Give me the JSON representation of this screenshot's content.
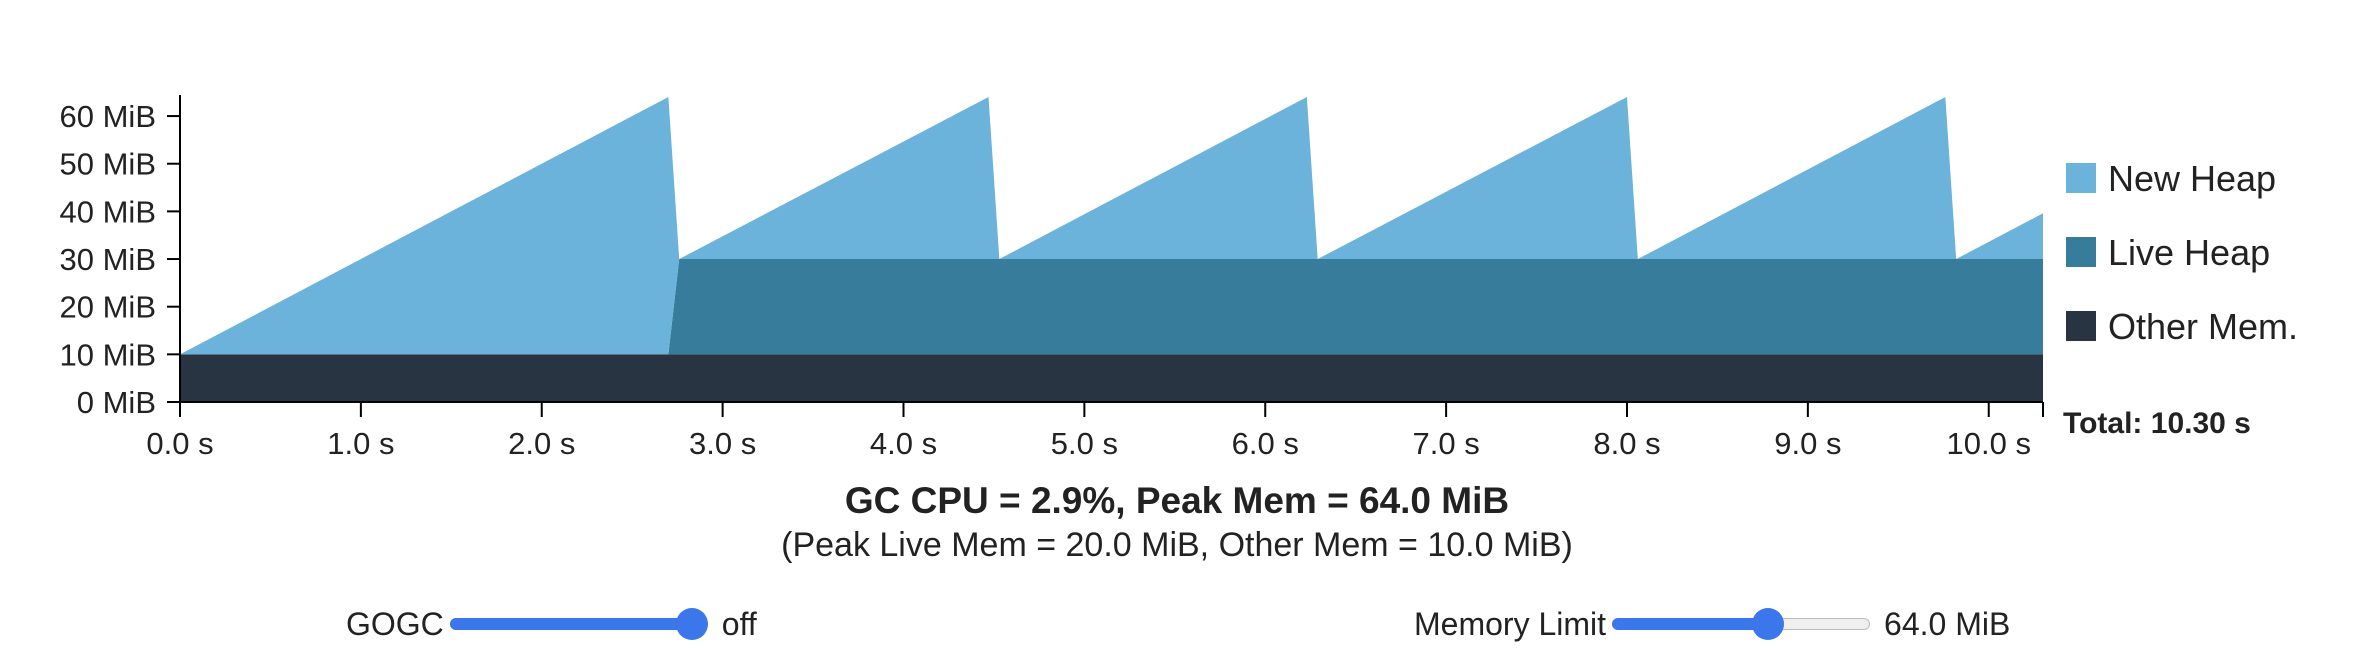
{
  "chart_data": {
    "type": "area",
    "stacked": true,
    "x_unit": "s",
    "y_unit": "MiB",
    "xlim": [
      0,
      10.3
    ],
    "ylim": [
      0,
      64
    ],
    "x_ticks": [
      "0.0 s",
      "1.0 s",
      "2.0 s",
      "3.0 s",
      "4.0 s",
      "5.0 s",
      "6.0 s",
      "7.0 s",
      "8.0 s",
      "9.0 s",
      "10.0 s"
    ],
    "y_ticks": [
      "0 MiB",
      "10 MiB",
      "20 MiB",
      "30 MiB",
      "40 MiB",
      "50 MiB",
      "60 MiB"
    ],
    "legend_position": "right",
    "series": [
      {
        "name": "Other Mem.",
        "color": "#283442",
        "points": [
          [
            0,
            10
          ],
          [
            10.3,
            10
          ]
        ]
      },
      {
        "name": "Live Heap",
        "color": "#377c9b",
        "points": [
          [
            0,
            0
          ],
          [
            2.7,
            0
          ],
          [
            2.76,
            20
          ],
          [
            10.3,
            20
          ]
        ]
      },
      {
        "name": "New Heap",
        "color": "#6cb3db",
        "points": [
          [
            0,
            0
          ],
          [
            2.7,
            54
          ],
          [
            2.76,
            0
          ],
          [
            4.47,
            34
          ],
          [
            4.53,
            0
          ],
          [
            6.23,
            34
          ],
          [
            6.29,
            0
          ],
          [
            8.0,
            34
          ],
          [
            8.06,
            0
          ],
          [
            9.76,
            34
          ],
          [
            9.82,
            0
          ],
          [
            10.3,
            9.6
          ]
        ]
      }
    ],
    "total_label": "Total: 10.30 s"
  },
  "summary": {
    "main": "GC CPU = 2.9%, Peak Mem = 64.0 MiB",
    "sub": "(Peak Live Mem = 20.0 MiB, Other Mem = 10.0 MiB)"
  },
  "controls": {
    "gogc": {
      "label": "GOGC",
      "value_text": "off",
      "fraction": 1.0
    },
    "memory_limit": {
      "label": "Memory Limit",
      "value_text": "64.0 MiB",
      "fraction": 0.62
    }
  }
}
